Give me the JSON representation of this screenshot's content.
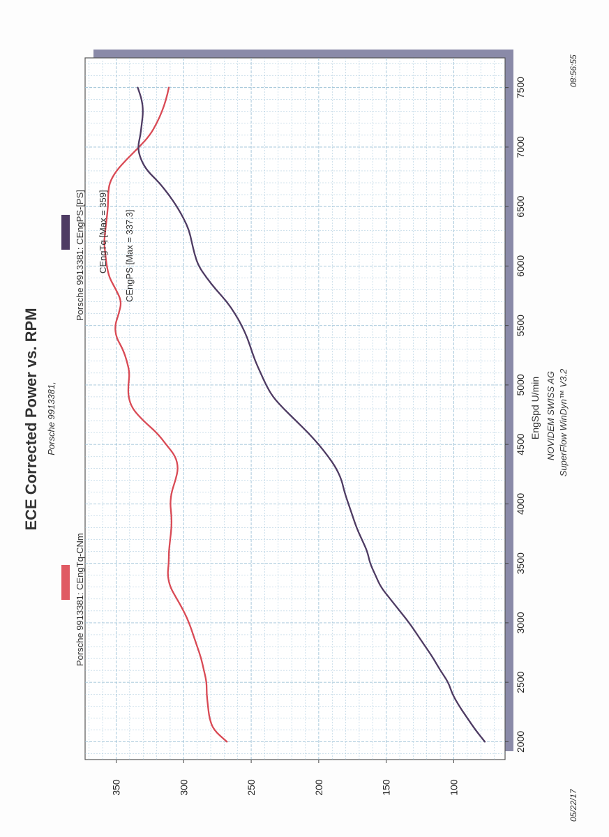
{
  "header": {
    "title": "ECE Corrected Power vs. RPM",
    "subtitle": "Porsche 9913381,"
  },
  "footer": {
    "company": "NOVIDEM SWISS AG",
    "software": "SuperFlow WinDyn™ V3.2",
    "date": "05/22/17",
    "time": "08:56:55"
  },
  "legend": {
    "torque_label": "Porsche 9913381: CEngTq-CNm",
    "power_label": "Porsche 9913381: CEngPS-[PS]"
  },
  "colors": {
    "torque": "#d94a55",
    "power": "#4e3b63",
    "grid": "#9fc3d8",
    "frame": "#8a8aa8"
  },
  "chart_data": {
    "type": "line",
    "title": "ECE Corrected Power vs. RPM",
    "subtitle": "Porsche 9913381,",
    "xlabel": "EngSpd U/min",
    "ylabel": "",
    "xlim": [
      1850,
      7750
    ],
    "ylim": [
      62,
      373
    ],
    "x_ticks": [
      2000,
      2500,
      3000,
      3500,
      4000,
      4500,
      5000,
      5500,
      6000,
      6500,
      7000,
      7500
    ],
    "y_ticks": [
      100,
      150,
      200,
      250,
      300,
      350
    ],
    "grid": true,
    "series": [
      {
        "name": "Porsche 9913381: CEngTq-CNm",
        "annotation": "CEngTq [Max = 359]",
        "color": "#d94a55",
        "x": [
          2000,
          2100,
          2200,
          2300,
          2400,
          2500,
          2600,
          2700,
          2800,
          2900,
          3000,
          3100,
          3200,
          3300,
          3400,
          3500,
          3600,
          3700,
          3800,
          3900,
          4000,
          4100,
          4200,
          4300,
          4400,
          4500,
          4600,
          4700,
          4800,
          4900,
          5000,
          5100,
          5200,
          5300,
          5400,
          5500,
          5600,
          5700,
          5800,
          5900,
          6000,
          6100,
          6200,
          6300,
          6400,
          6500,
          6600,
          6700,
          6800,
          6900,
          7000,
          7100,
          7200,
          7300,
          7400,
          7500
        ],
        "y": [
          268,
          278,
          281,
          282,
          283,
          283,
          285,
          287,
          290,
          293,
          296,
          300,
          305,
          310,
          312,
          311,
          311,
          310,
          309,
          309,
          310,
          309,
          306,
          304,
          306,
          313,
          320,
          330,
          338,
          341,
          341,
          340,
          342,
          345,
          350,
          351,
          348,
          346,
          350,
          355,
          357,
          358,
          359,
          358,
          357,
          356,
          356,
          355,
          350,
          342,
          333,
          325,
          320,
          316,
          313,
          311
        ],
        "y_unit": "Nm"
      },
      {
        "name": "Porsche 9913381: CEngPS-[PS]",
        "annotation": "CEngPS [Max = 337.3]",
        "color": "#4e3b63",
        "x": [
          2000,
          2100,
          2200,
          2300,
          2400,
          2500,
          2600,
          2700,
          2800,
          2900,
          3000,
          3100,
          3200,
          3300,
          3400,
          3500,
          3600,
          3700,
          3800,
          3900,
          4000,
          4100,
          4200,
          4300,
          4400,
          4500,
          4600,
          4700,
          4800,
          4900,
          5000,
          5100,
          5200,
          5300,
          5400,
          5500,
          5600,
          5700,
          5800,
          5900,
          6000,
          6100,
          6200,
          6300,
          6400,
          6500,
          6600,
          6700,
          6800,
          6900,
          7000,
          7100,
          7200,
          7300,
          7400,
          7500
        ],
        "y": [
          77,
          84,
          90,
          96,
          101,
          104,
          110,
          115,
          121,
          127,
          133,
          140,
          147,
          154,
          158,
          162,
          164,
          168,
          172,
          175,
          178,
          181,
          183,
          187,
          193,
          200,
          208,
          217,
          226,
          234,
          239,
          243,
          247,
          250,
          253,
          257,
          262,
          268,
          276,
          283,
          289,
          292,
          294,
          296,
          300,
          305,
          311,
          318,
          327,
          332,
          334,
          332,
          331,
          330,
          331,
          334
        ],
        "y_unit": "PS"
      }
    ]
  }
}
